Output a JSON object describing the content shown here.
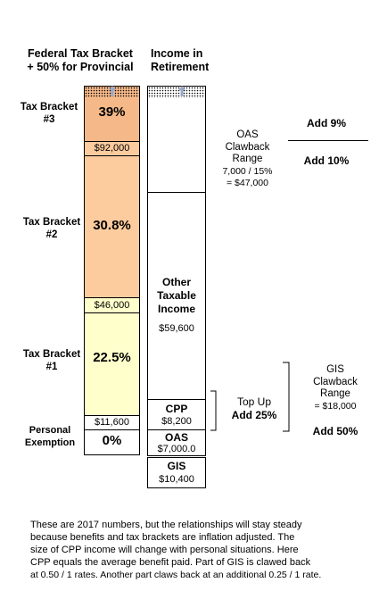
{
  "headers": {
    "federal": [
      "Federal Tax Bracket",
      "+ 50% for Provincial"
    ],
    "retirement": [
      "Income in",
      "Retirement"
    ]
  },
  "brackets": {
    "bracket3": {
      "label": [
        "Tax Bracket",
        "#3"
      ],
      "rate": "39%"
    },
    "bracket2": {
      "label": [
        "Tax Bracket",
        "#2"
      ],
      "rate": "30.8%",
      "threshold": "$92,000"
    },
    "bracket1": {
      "label": [
        "Tax Bracket",
        "#1"
      ],
      "rate": "22.5%",
      "threshold": "$46,000"
    },
    "personal": {
      "label": [
        "Personal",
        "Exemption"
      ],
      "rate": "0%",
      "threshold": "$11,600"
    }
  },
  "income": {
    "other": {
      "label": [
        "Other",
        "Taxable",
        "Income"
      ],
      "value": "$59,600"
    },
    "cpp": {
      "label": "CPP",
      "value": "$8,200"
    },
    "oas": {
      "label": "OAS",
      "value": "$7,000.0"
    },
    "gis": {
      "label": "GIS",
      "value": "$10,400"
    }
  },
  "annotations": {
    "oas_clawback": [
      "OAS",
      "Clawback",
      "Range",
      "7,000 / 15%",
      "= $47,000"
    ],
    "add9": "Add 9%",
    "add10": "Add 10%",
    "topup": [
      "Top Up",
      "Add 25%"
    ],
    "gis_clawback": [
      "GIS",
      "Clawback",
      "Range",
      "= $18,000"
    ],
    "add50": "Add 50%"
  },
  "footnote": [
    "These are 2017 numbers, but the relationships will stay steady",
    "because benefits and tax brackets are inflation adjusted.  The",
    "size of  CPP income will change with personal situations.  Here",
    "CPP equals the average benefit paid.  Part of GIS is clawed back",
    "at 0.50 / 1 rates.  Another part claws back at an additional 0.25 / 1 rate."
  ],
  "colors": {
    "bracket_orange": "#FCCB9E",
    "bracket3_orange": "#F5B888",
    "bracket1_yellow": "#FFFFCC",
    "arrow": "#9BA8C8"
  }
}
